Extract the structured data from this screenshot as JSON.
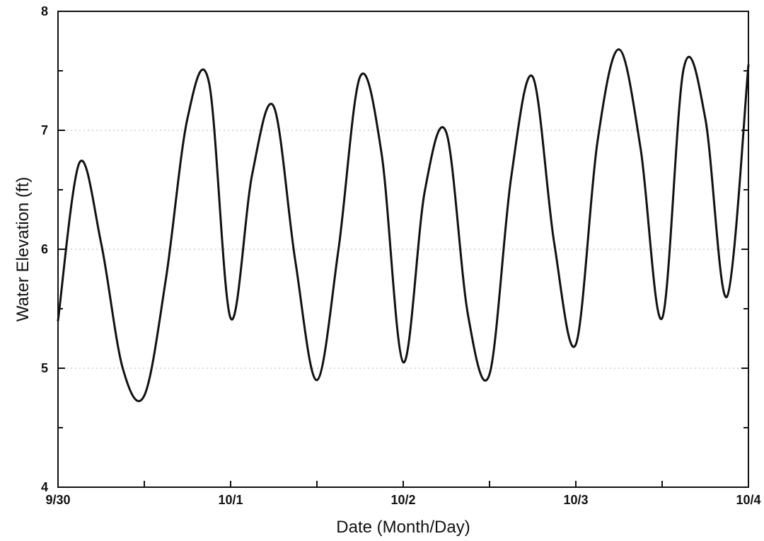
{
  "chart_data": {
    "type": "line",
    "title": "",
    "xlabel": "Date (Month/Day)",
    "ylabel": "Water Elevation (ft)",
    "xlim": [
      "9/30 00:00",
      "10/4 00:00"
    ],
    "ylim": [
      4,
      8
    ],
    "x_ticks": [
      "9/30",
      "10/1",
      "10/2",
      "10/3",
      "10/4"
    ],
    "y_ticks": [
      "4",
      "5",
      "6",
      "7",
      "8"
    ],
    "grid": "dotted horizontal at 5, 6, 7",
    "series": [
      {
        "color": "#111111",
        "x": [
          "9/30 00:00",
          "9/30 03:00",
          "9/30 06:00",
          "9/30 09:00",
          "9/30 12:00",
          "9/30 15:00",
          "9/30 18:00",
          "9/30 21:00",
          "10/1 00:00",
          "10/1 03:00",
          "10/1 06:00",
          "10/1 09:00",
          "10/1 12:00",
          "10/1 15:00",
          "10/1 18:00",
          "10/1 21:00",
          "10/2 00:00",
          "10/2 03:00",
          "10/2 06:00",
          "10/2 09:00",
          "10/2 12:00",
          "10/2 15:00",
          "10/2 18:00",
          "10/2 21:00",
          "10/3 00:00",
          "10/3 03:00",
          "10/3 06:00",
          "10/3 09:00",
          "10/3 12:00",
          "10/3 15:00",
          "10/3 18:00",
          "10/3 21:00",
          "10/4 00:00"
        ],
        "y": [
          5.4,
          6.73,
          6.05,
          5.0,
          4.77,
          5.75,
          7.1,
          7.4,
          5.42,
          6.63,
          7.2,
          5.9,
          4.9,
          6.0,
          7.45,
          6.8,
          5.05,
          6.49,
          6.98,
          5.45,
          4.95,
          6.6,
          7.45,
          6.05,
          5.2,
          6.9,
          7.68,
          6.85,
          5.42,
          7.52,
          7.1,
          5.6,
          7.55
        ]
      }
    ]
  }
}
